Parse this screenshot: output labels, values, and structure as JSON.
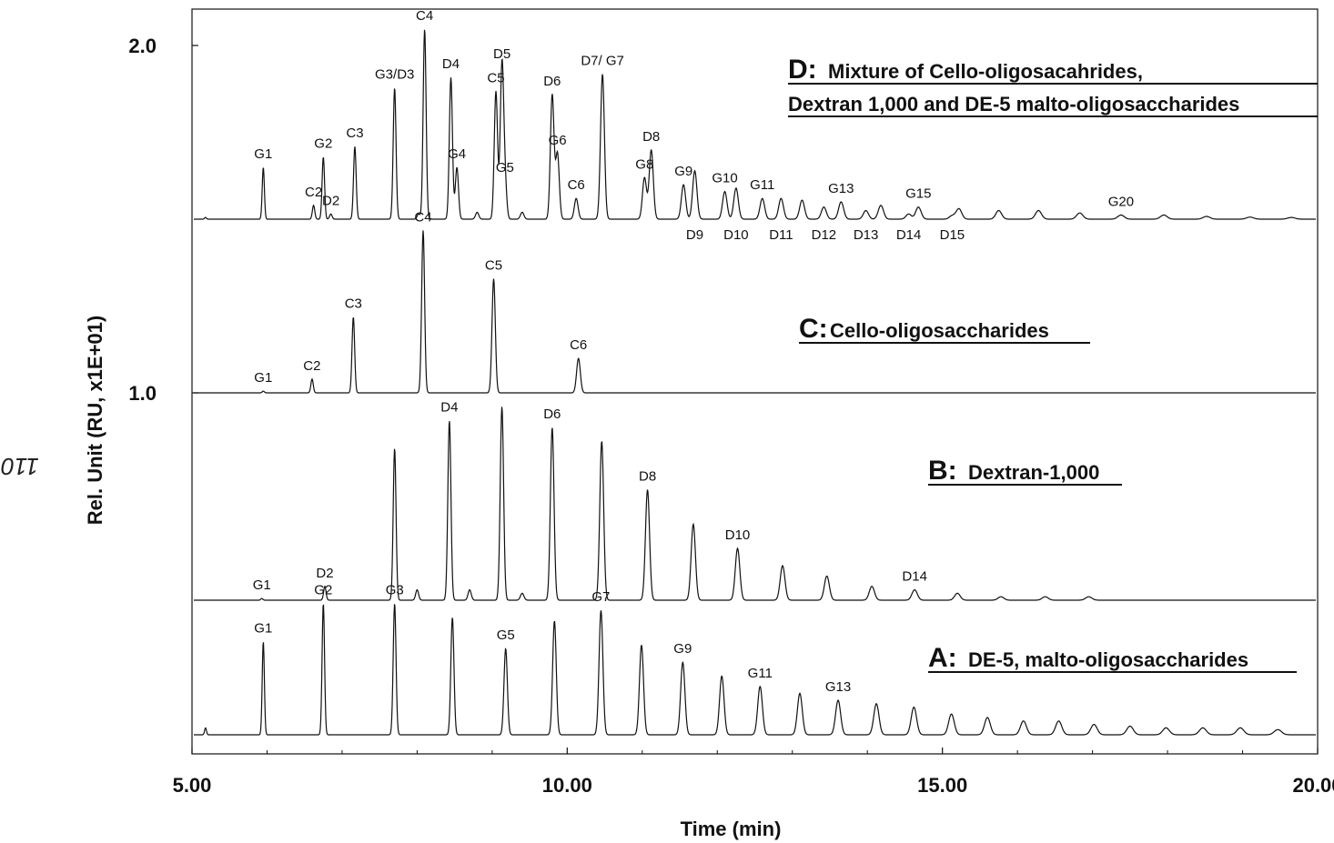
{
  "side_note": "110",
  "chart_data": {
    "type": "line",
    "xlabel": "Time (min)",
    "ylabel": "Rel. Unit (RU, x1E+01)",
    "xlim": [
      5.0,
      20.0
    ],
    "xticks": [
      "5.00",
      "10.00",
      "15.00",
      "20.00"
    ],
    "yticks": [
      "1.0",
      "2.0"
    ],
    "grid": false,
    "series": [
      {
        "name": "A: DE-5, malto-oligosaccharides",
        "letter": "A",
        "title": "DE-5, malto-oligosaccharides",
        "baseline": 0.0,
        "peaks": [
          {
            "t": 5.18,
            "h": 0.02,
            "label": ""
          },
          {
            "t": 5.95,
            "h": 0.27,
            "label": "G1"
          },
          {
            "t": 6.75,
            "h": 0.38,
            "label": "G2"
          },
          {
            "t": 7.7,
            "h": 0.38,
            "label": "G3"
          },
          {
            "t": 8.47,
            "h": 0.34,
            "label": ""
          },
          {
            "t": 9.18,
            "h": 0.25,
            "label": "G5"
          },
          {
            "t": 9.83,
            "h": 0.33,
            "label": ""
          },
          {
            "t": 10.45,
            "h": 0.36,
            "label": "G7"
          },
          {
            "t": 10.99,
            "h": 0.26,
            "label": ""
          },
          {
            "t": 11.54,
            "h": 0.21,
            "label": "G9"
          },
          {
            "t": 12.06,
            "h": 0.17,
            "label": ""
          },
          {
            "t": 12.57,
            "h": 0.14,
            "label": "G11"
          },
          {
            "t": 13.1,
            "h": 0.12,
            "label": ""
          },
          {
            "t": 13.61,
            "h": 0.1,
            "label": "G13"
          },
          {
            "t": 14.12,
            "h": 0.09,
            "label": ""
          },
          {
            "t": 14.62,
            "h": 0.08,
            "label": ""
          },
          {
            "t": 15.12,
            "h": 0.06,
            "label": ""
          },
          {
            "t": 15.6,
            "h": 0.05,
            "label": ""
          },
          {
            "t": 16.08,
            "h": 0.04,
            "label": ""
          },
          {
            "t": 16.55,
            "h": 0.04,
            "label": ""
          },
          {
            "t": 17.02,
            "h": 0.03,
            "label": ""
          },
          {
            "t": 17.5,
            "h": 0.025,
            "label": ""
          },
          {
            "t": 17.98,
            "h": 0.02,
            "label": ""
          },
          {
            "t": 18.47,
            "h": 0.02,
            "label": ""
          },
          {
            "t": 18.97,
            "h": 0.02,
            "label": ""
          },
          {
            "t": 19.47,
            "h": 0.015,
            "label": ""
          }
        ]
      },
      {
        "name": "B: Dextran-1,000",
        "letter": "B",
        "title": "Dextran-1,000",
        "baseline": 0.4,
        "peaks": [
          {
            "t": 5.93,
            "h": 0.005,
            "label": "G1"
          },
          {
            "t": 6.77,
            "h": 0.04,
            "label": "D2"
          },
          {
            "t": 7.7,
            "h": 0.44,
            "label": ""
          },
          {
            "t": 8.0,
            "h": 0.03,
            "label": ""
          },
          {
            "t": 8.43,
            "h": 0.52,
            "label": "D4"
          },
          {
            "t": 8.7,
            "h": 0.03,
            "label": ""
          },
          {
            "t": 9.13,
            "h": 0.56,
            "label": ""
          },
          {
            "t": 9.4,
            "h": 0.02,
            "label": ""
          },
          {
            "t": 9.8,
            "h": 0.5,
            "label": "D6"
          },
          {
            "t": 10.46,
            "h": 0.46,
            "label": ""
          },
          {
            "t": 11.07,
            "h": 0.32,
            "label": "D8"
          },
          {
            "t": 11.68,
            "h": 0.22,
            "label": ""
          },
          {
            "t": 12.27,
            "h": 0.15,
            "label": "D10"
          },
          {
            "t": 12.87,
            "h": 0.1,
            "label": ""
          },
          {
            "t": 13.46,
            "h": 0.07,
            "label": ""
          },
          {
            "t": 14.06,
            "h": 0.04,
            "label": ""
          },
          {
            "t": 14.63,
            "h": 0.03,
            "label": "D14"
          },
          {
            "t": 15.2,
            "h": 0.02,
            "label": ""
          },
          {
            "t": 15.78,
            "h": 0.01,
            "label": ""
          },
          {
            "t": 16.37,
            "h": 0.01,
            "label": ""
          },
          {
            "t": 16.95,
            "h": 0.01,
            "label": ""
          }
        ]
      },
      {
        "name": "C: Cello-oligosaccharides",
        "letter": "C",
        "title": "Cello-oligosaccharides",
        "baseline": 1.0,
        "peaks": [
          {
            "t": 5.95,
            "h": 0.005,
            "label": "G1"
          },
          {
            "t": 6.6,
            "h": 0.04,
            "label": "C2"
          },
          {
            "t": 7.15,
            "h": 0.22,
            "label": "C3"
          },
          {
            "t": 8.08,
            "h": 0.47,
            "label": "C4"
          },
          {
            "t": 9.02,
            "h": 0.33,
            "label": "C5"
          },
          {
            "t": 10.15,
            "h": 0.1,
            "label": "C6"
          }
        ]
      },
      {
        "name": "D: Mixture of Cello-oligosacahrides, Dextran 1,000 and DE-5 malto-oligosaccharides",
        "letter": "D",
        "title": "Mixture of Cello-oligosacahrides,",
        "title_line2": "Dextran 1,000 and DE-5 malto-oligosaccharides",
        "baseline": 1.5,
        "peaks": [
          {
            "t": 5.18,
            "h": 0.005,
            "label": ""
          },
          {
            "t": 5.95,
            "h": 0.15,
            "label": "G1"
          },
          {
            "t": 6.62,
            "h": 0.04,
            "label": "C2"
          },
          {
            "t": 6.75,
            "h": 0.18,
            "label": "G2"
          },
          {
            "t": 6.85,
            "h": 0.015,
            "label": "D2"
          },
          {
            "t": 7.17,
            "h": 0.21,
            "label": "C3"
          },
          {
            "t": 7.7,
            "h": 0.38,
            "label": "G3/D3"
          },
          {
            "t": 8.02,
            "h": 0.015,
            "label": ""
          },
          {
            "t": 8.1,
            "h": 0.55,
            "label": "C4"
          },
          {
            "t": 8.45,
            "h": 0.41,
            "label": "D4"
          },
          {
            "t": 8.53,
            "h": 0.15,
            "label": "G4"
          },
          {
            "t": 8.8,
            "h": 0.02,
            "label": ""
          },
          {
            "t": 9.05,
            "h": 0.37,
            "label": "C5"
          },
          {
            "t": 9.13,
            "h": 0.44,
            "label": "D5"
          },
          {
            "t": 9.17,
            "h": 0.11,
            "label": "G5"
          },
          {
            "t": 9.4,
            "h": 0.02,
            "label": ""
          },
          {
            "t": 9.8,
            "h": 0.36,
            "label": "D6"
          },
          {
            "t": 9.87,
            "h": 0.19,
            "label": "G6"
          },
          {
            "t": 10.12,
            "h": 0.06,
            "label": "C6"
          },
          {
            "t": 10.47,
            "h": 0.42,
            "label": "D7/ G7"
          },
          {
            "t": 11.03,
            "h": 0.12,
            "label": "G8"
          },
          {
            "t": 11.12,
            "h": 0.2,
            "label": "D8"
          },
          {
            "t": 11.55,
            "h": 0.1,
            "label": "G9"
          },
          {
            "t": 11.7,
            "h": 0.14,
            "label": "D9"
          },
          {
            "t": 12.1,
            "h": 0.08,
            "label": "G10"
          },
          {
            "t": 12.25,
            "h": 0.09,
            "label": "D10"
          },
          {
            "t": 12.6,
            "h": 0.06,
            "label": "G11"
          },
          {
            "t": 12.85,
            "h": 0.06,
            "label": "D11"
          },
          {
            "t": 13.13,
            "h": 0.055,
            "label": ""
          },
          {
            "t": 13.42,
            "h": 0.035,
            "label": "D12"
          },
          {
            "t": 13.65,
            "h": 0.05,
            "label": "G13"
          },
          {
            "t": 13.98,
            "h": 0.025,
            "label": "D13"
          },
          {
            "t": 14.18,
            "h": 0.04,
            "label": ""
          },
          {
            "t": 14.55,
            "h": 0.015,
            "label": "D14"
          },
          {
            "t": 14.68,
            "h": 0.035,
            "label": "G15"
          },
          {
            "t": 15.13,
            "h": 0.01,
            "label": "D15"
          },
          {
            "t": 15.22,
            "h": 0.03,
            "label": ""
          },
          {
            "t": 15.75,
            "h": 0.025,
            "label": ""
          },
          {
            "t": 16.28,
            "h": 0.025,
            "label": ""
          },
          {
            "t": 16.83,
            "h": 0.018,
            "label": ""
          },
          {
            "t": 17.38,
            "h": 0.012,
            "label": "G20"
          },
          {
            "t": 17.95,
            "h": 0.012,
            "label": ""
          },
          {
            "t": 18.52,
            "h": 0.008,
            "label": ""
          },
          {
            "t": 19.1,
            "h": 0.006,
            "label": ""
          },
          {
            "t": 19.65,
            "h": 0.005,
            "label": ""
          }
        ]
      }
    ]
  }
}
